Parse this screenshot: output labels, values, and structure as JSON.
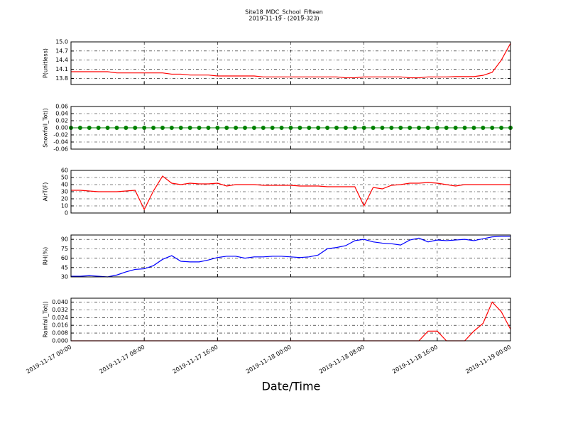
{
  "chart_data": [
    {
      "type": "line",
      "title": "Site18_MDC_School_Fifteen",
      "subtitle": "2019-11-19 - (2019-323)",
      "ylabel": "P(unitless)",
      "xlim": [
        "2019-11-17 00:00",
        "2019-11-19 00:00"
      ],
      "xticks": [
        "2019-11-17 00:00",
        "2019-11-17 08:00",
        "2019-11-17 16:00",
        "2019-11-18 00:00",
        "2019-11-18 08:00",
        "2019-11-18 16:00",
        "2019-11-19 00:00"
      ],
      "ylim": [
        13.6,
        15.0
      ],
      "yticks": [
        13.8,
        14.1,
        14.4,
        14.7,
        {
          "value": 15.0,
          "label": "15.0"
        }
      ],
      "grid": true,
      "x": [
        "2019-11-17 00:00",
        "2019-11-17 01:00",
        "2019-11-17 02:00",
        "2019-11-17 03:00",
        "2019-11-17 04:00",
        "2019-11-17 05:00",
        "2019-11-17 06:00",
        "2019-11-17 07:00",
        "2019-11-17 08:00",
        "2019-11-17 09:00",
        "2019-11-17 10:00",
        "2019-11-17 11:00",
        "2019-11-17 12:00",
        "2019-11-17 13:00",
        "2019-11-17 14:00",
        "2019-11-17 15:00",
        "2019-11-17 16:00",
        "2019-11-17 17:00",
        "2019-11-17 18:00",
        "2019-11-17 19:00",
        "2019-11-17 20:00",
        "2019-11-17 21:00",
        "2019-11-17 22:00",
        "2019-11-17 23:00",
        "2019-11-18 00:00",
        "2019-11-18 01:00",
        "2019-11-18 02:00",
        "2019-11-18 03:00",
        "2019-11-18 04:00",
        "2019-11-18 05:00",
        "2019-11-18 06:00",
        "2019-11-18 07:00",
        "2019-11-18 08:00",
        "2019-11-18 09:00",
        "2019-11-18 10:00",
        "2019-11-18 11:00",
        "2019-11-18 12:00",
        "2019-11-18 13:00",
        "2019-11-18 14:00",
        "2019-11-18 15:00",
        "2019-11-18 16:00",
        "2019-11-18 17:00",
        "2019-11-18 18:00",
        "2019-11-18 19:00",
        "2019-11-18 20:00",
        "2019-11-18 21:00",
        "2019-11-18 22:00",
        "2019-11-18 23:00",
        "2019-11-19 00:00"
      ],
      "series": [
        {
          "color": "#ff0000",
          "values": [
            14.02,
            14.02,
            14.02,
            14.02,
            14.02,
            13.98,
            13.98,
            13.98,
            13.98,
            13.98,
            13.98,
            13.94,
            13.94,
            13.91,
            13.91,
            13.91,
            13.88,
            13.88,
            13.88,
            13.88,
            13.88,
            13.85,
            13.85,
            13.85,
            13.85,
            13.85,
            13.85,
            13.85,
            13.85,
            13.85,
            13.82,
            13.82,
            13.85,
            13.85,
            13.85,
            13.85,
            13.85,
            13.82,
            13.82,
            13.85,
            13.85,
            13.85,
            13.86,
            13.86,
            13.86,
            13.9,
            14.0,
            14.4,
            14.95
          ]
        }
      ]
    },
    {
      "type": "line",
      "ylabel": "Snowfall_Tot()",
      "xlim": [
        "2019-11-17 00:00",
        "2019-11-19 00:00"
      ],
      "xticks": [
        "2019-11-17 00:00",
        "2019-11-17 08:00",
        "2019-11-17 16:00",
        "2019-11-18 00:00",
        "2019-11-18 08:00",
        "2019-11-18 16:00",
        "2019-11-19 00:00"
      ],
      "ylim": [
        -0.06,
        0.06
      ],
      "yticks": [
        -0.06,
        -0.04,
        -0.02,
        {
          "value": 0,
          "label": "0.00"
        },
        0.02,
        0.04,
        0.06
      ],
      "grid": true,
      "marker": true,
      "x": [
        "2019-11-17 00:00",
        "2019-11-17 01:00",
        "2019-11-17 02:00",
        "2019-11-17 03:00",
        "2019-11-17 04:00",
        "2019-11-17 05:00",
        "2019-11-17 06:00",
        "2019-11-17 07:00",
        "2019-11-17 08:00",
        "2019-11-17 09:00",
        "2019-11-17 10:00",
        "2019-11-17 11:00",
        "2019-11-17 12:00",
        "2019-11-17 13:00",
        "2019-11-17 14:00",
        "2019-11-17 15:00",
        "2019-11-17 16:00",
        "2019-11-17 17:00",
        "2019-11-17 18:00",
        "2019-11-17 19:00",
        "2019-11-17 20:00",
        "2019-11-17 21:00",
        "2019-11-17 22:00",
        "2019-11-17 23:00",
        "2019-11-18 00:00",
        "2019-11-18 01:00",
        "2019-11-18 02:00",
        "2019-11-18 03:00",
        "2019-11-18 04:00",
        "2019-11-18 05:00",
        "2019-11-18 06:00",
        "2019-11-18 07:00",
        "2019-11-18 08:00",
        "2019-11-18 09:00",
        "2019-11-18 10:00",
        "2019-11-18 11:00",
        "2019-11-18 12:00",
        "2019-11-18 13:00",
        "2019-11-18 14:00",
        "2019-11-18 15:00",
        "2019-11-18 16:00",
        "2019-11-18 17:00",
        "2019-11-18 18:00",
        "2019-11-18 19:00",
        "2019-11-18 20:00",
        "2019-11-18 21:00",
        "2019-11-18 22:00",
        "2019-11-18 23:00",
        "2019-11-19 00:00"
      ],
      "series": [
        {
          "color": "#008000",
          "values": [
            0,
            0,
            0,
            0,
            0,
            0,
            0,
            0,
            0,
            0,
            0,
            0,
            0,
            0,
            0,
            0,
            0,
            0,
            0,
            0,
            0,
            0,
            0,
            0,
            0,
            0,
            0,
            0,
            0,
            0,
            0,
            0,
            0,
            0,
            0,
            0,
            0,
            0,
            0,
            0,
            0,
            0,
            0,
            0,
            0,
            0,
            0,
            0,
            0
          ]
        }
      ]
    },
    {
      "type": "line",
      "ylabel": "AirT(F)",
      "xlim": [
        "2019-11-17 00:00",
        "2019-11-19 00:00"
      ],
      "xticks": [
        "2019-11-17 00:00",
        "2019-11-17 08:00",
        "2019-11-17 16:00",
        "2019-11-18 00:00",
        "2019-11-18 08:00",
        "2019-11-18 16:00",
        "2019-11-19 00:00"
      ],
      "ylim": [
        0,
        60
      ],
      "yticks": [
        0,
        10,
        20,
        30,
        40,
        50,
        60
      ],
      "grid": true,
      "x": [
        "2019-11-17 00:00",
        "2019-11-17 01:00",
        "2019-11-17 02:00",
        "2019-11-17 03:00",
        "2019-11-17 04:00",
        "2019-11-17 05:00",
        "2019-11-17 06:00",
        "2019-11-17 07:00",
        "2019-11-17 08:00",
        "2019-11-17 09:00",
        "2019-11-17 10:00",
        "2019-11-17 11:00",
        "2019-11-17 12:00",
        "2019-11-17 13:00",
        "2019-11-17 14:00",
        "2019-11-17 15:00",
        "2019-11-17 16:00",
        "2019-11-17 17:00",
        "2019-11-17 18:00",
        "2019-11-17 19:00",
        "2019-11-17 20:00",
        "2019-11-17 21:00",
        "2019-11-17 22:00",
        "2019-11-17 23:00",
        "2019-11-18 00:00",
        "2019-11-18 01:00",
        "2019-11-18 02:00",
        "2019-11-18 03:00",
        "2019-11-18 04:00",
        "2019-11-18 05:00",
        "2019-11-18 06:00",
        "2019-11-18 07:00",
        "2019-11-18 08:00",
        "2019-11-18 09:00",
        "2019-11-18 10:00",
        "2019-11-18 11:00",
        "2019-11-18 12:00",
        "2019-11-18 13:00",
        "2019-11-18 14:00",
        "2019-11-18 15:00",
        "2019-11-18 16:00",
        "2019-11-18 17:00",
        "2019-11-18 18:00",
        "2019-11-18 19:00",
        "2019-11-18 20:00",
        "2019-11-18 21:00",
        "2019-11-18 22:00",
        "2019-11-18 23:00",
        "2019-11-19 00:00"
      ],
      "series": [
        {
          "color": "#ff0000",
          "values": [
            32,
            32,
            31,
            30,
            30,
            30,
            31,
            32,
            5,
            31,
            52,
            42,
            40,
            42,
            41,
            41,
            42,
            38,
            40,
            40,
            40,
            39,
            39,
            39,
            39,
            38,
            38,
            38,
            37,
            37,
            37,
            37,
            10,
            36,
            34,
            39,
            40,
            42,
            42,
            43,
            42,
            40,
            38,
            40,
            40,
            40,
            40,
            40,
            40
          ]
        }
      ]
    },
    {
      "type": "line",
      "ylabel": "RH(%)",
      "xlim": [
        "2019-11-17 00:00",
        "2019-11-19 00:00"
      ],
      "xticks": [
        "2019-11-17 00:00",
        "2019-11-17 08:00",
        "2019-11-17 16:00",
        "2019-11-18 00:00",
        "2019-11-18 08:00",
        "2019-11-18 16:00",
        "2019-11-19 00:00"
      ],
      "ylim": [
        30,
        97
      ],
      "yticks": [
        30,
        45,
        60,
        75,
        90
      ],
      "grid": true,
      "x": [
        "2019-11-17 00:00",
        "2019-11-17 01:00",
        "2019-11-17 02:00",
        "2019-11-17 03:00",
        "2019-11-17 04:00",
        "2019-11-17 05:00",
        "2019-11-17 06:00",
        "2019-11-17 07:00",
        "2019-11-17 08:00",
        "2019-11-17 09:00",
        "2019-11-17 10:00",
        "2019-11-17 11:00",
        "2019-11-17 12:00",
        "2019-11-17 13:00",
        "2019-11-17 14:00",
        "2019-11-17 15:00",
        "2019-11-17 16:00",
        "2019-11-17 17:00",
        "2019-11-17 18:00",
        "2019-11-17 19:00",
        "2019-11-17 20:00",
        "2019-11-17 21:00",
        "2019-11-17 22:00",
        "2019-11-17 23:00",
        "2019-11-18 00:00",
        "2019-11-18 01:00",
        "2019-11-18 02:00",
        "2019-11-18 03:00",
        "2019-11-18 04:00",
        "2019-11-18 05:00",
        "2019-11-18 06:00",
        "2019-11-18 07:00",
        "2019-11-18 08:00",
        "2019-11-18 09:00",
        "2019-11-18 10:00",
        "2019-11-18 11:00",
        "2019-11-18 12:00",
        "2019-11-18 13:00",
        "2019-11-18 14:00",
        "2019-11-18 15:00",
        "2019-11-18 16:00",
        "2019-11-18 17:00",
        "2019-11-18 18:00",
        "2019-11-18 19:00",
        "2019-11-18 20:00",
        "2019-11-18 21:00",
        "2019-11-18 22:00",
        "2019-11-18 23:00",
        "2019-11-19 00:00"
      ],
      "series": [
        {
          "color": "#0000ff",
          "values": [
            31,
            31,
            32,
            31,
            30,
            33,
            38,
            42,
            43,
            48,
            58,
            64,
            55,
            54,
            54,
            57,
            61,
            63,
            63,
            60,
            62,
            62,
            63,
            63,
            62,
            61,
            62,
            65,
            75,
            77,
            80,
            88,
            90,
            86,
            84,
            83,
            81,
            89,
            92,
            86,
            89,
            88,
            89,
            90,
            88,
            91,
            94,
            95,
            95
          ]
        }
      ]
    },
    {
      "type": "line",
      "ylabel": "Rainfall_Tot()",
      "xlabel": "Date/Time",
      "xlim": [
        "2019-11-17 00:00",
        "2019-11-19 00:00"
      ],
      "xticks": [
        "2019-11-17 00:00",
        "2019-11-17 08:00",
        "2019-11-17 16:00",
        "2019-11-18 00:00",
        "2019-11-18 08:00",
        "2019-11-18 16:00",
        "2019-11-19 00:00"
      ],
      "ylim": [
        0,
        0.044
      ],
      "yticks": [
        {
          "value": 0,
          "label": "0.000"
        },
        0.008,
        0.016,
        0.024,
        0.032,
        {
          "value": 0.04,
          "label": "0.040"
        }
      ],
      "grid": true,
      "x": [
        "2019-11-17 00:00",
        "2019-11-17 01:00",
        "2019-11-17 02:00",
        "2019-11-17 03:00",
        "2019-11-17 04:00",
        "2019-11-17 05:00",
        "2019-11-17 06:00",
        "2019-11-17 07:00",
        "2019-11-17 08:00",
        "2019-11-17 09:00",
        "2019-11-17 10:00",
        "2019-11-17 11:00",
        "2019-11-17 12:00",
        "2019-11-17 13:00",
        "2019-11-17 14:00",
        "2019-11-17 15:00",
        "2019-11-17 16:00",
        "2019-11-17 17:00",
        "2019-11-17 18:00",
        "2019-11-17 19:00",
        "2019-11-17 20:00",
        "2019-11-17 21:00",
        "2019-11-17 22:00",
        "2019-11-17 23:00",
        "2019-11-18 00:00",
        "2019-11-18 01:00",
        "2019-11-18 02:00",
        "2019-11-18 03:00",
        "2019-11-18 04:00",
        "2019-11-18 05:00",
        "2019-11-18 06:00",
        "2019-11-18 07:00",
        "2019-11-18 08:00",
        "2019-11-18 09:00",
        "2019-11-18 10:00",
        "2019-11-18 11:00",
        "2019-11-18 12:00",
        "2019-11-18 13:00",
        "2019-11-18 14:00",
        "2019-11-18 15:00",
        "2019-11-18 16:00",
        "2019-11-18 17:00",
        "2019-11-18 18:00",
        "2019-11-18 19:00",
        "2019-11-18 20:00",
        "2019-11-18 21:00",
        "2019-11-18 22:00",
        "2019-11-18 23:00",
        "2019-11-19 00:00"
      ],
      "series": [
        {
          "color": "#ff0000",
          "values": [
            0,
            0,
            0,
            0,
            0,
            0,
            0,
            0,
            0,
            0,
            0,
            0,
            0,
            0,
            0,
            0,
            0,
            0,
            0,
            0,
            0,
            0,
            0,
            0,
            0,
            0,
            0,
            0,
            0,
            0,
            0,
            0,
            0,
            0,
            0,
            0,
            0,
            0,
            0,
            0.01,
            0.01,
            0,
            0,
            0,
            0.01,
            0.018,
            0.04,
            0.03,
            0.012
          ]
        }
      ]
    }
  ]
}
